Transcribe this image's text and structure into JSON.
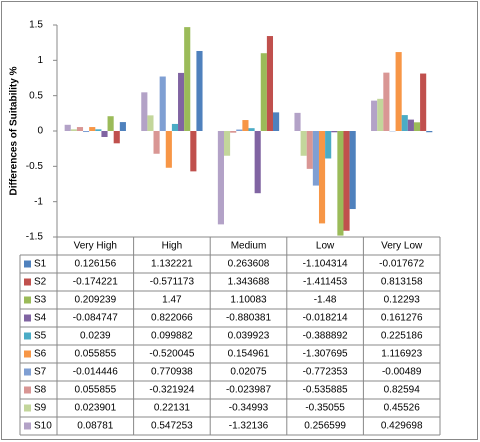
{
  "chart_data": {
    "type": "bar",
    "y_label": "Differences of Suitability %",
    "categories": [
      "Very High",
      "High",
      "Medium",
      "Low",
      "Very Low"
    ],
    "series": [
      {
        "name": "S1",
        "color": "#4f81bd",
        "values": [
          0.126156,
          1.132221,
          0.263608,
          -1.104314,
          -0.017672
        ]
      },
      {
        "name": "S2",
        "color": "#c0504d",
        "values": [
          -0.174221,
          -0.571173,
          1.343688,
          -1.411453,
          0.813158
        ]
      },
      {
        "name": "S3",
        "color": "#9bbb59",
        "values": [
          0.209239,
          1.47,
          1.10083,
          -1.48,
          0.12293
        ]
      },
      {
        "name": "S4",
        "color": "#8064a2",
        "values": [
          -0.084747,
          0.822066,
          -0.880381,
          -0.018214,
          0.161276
        ]
      },
      {
        "name": "S5",
        "color": "#4bacc6",
        "values": [
          0.0239,
          0.099882,
          0.039923,
          -0.388892,
          0.225186
        ]
      },
      {
        "name": "S6",
        "color": "#f79646",
        "values": [
          0.055855,
          -0.520045,
          0.154961,
          -1.307695,
          1.116923
        ]
      },
      {
        "name": "S7",
        "color": "#7f9fd3",
        "values": [
          -0.014446,
          0.770938,
          0.02075,
          -0.772353,
          -0.00489
        ]
      },
      {
        "name": "S8",
        "color": "#d99694",
        "values": [
          0.055855,
          -0.321924,
          -0.023987,
          -0.535885,
          0.82594
        ]
      },
      {
        "name": "S9",
        "color": "#c3d69b",
        "values": [
          0.023901,
          0.22131,
          -0.34993,
          -0.35055,
          0.45526
        ]
      },
      {
        "name": "S10",
        "color": "#b3a2c7",
        "values": [
          0.08781,
          0.547253,
          -1.32136,
          0.256599,
          0.429698
        ]
      }
    ],
    "ylim": [
      -1.5,
      1.5
    ],
    "yticks": [
      -1.5,
      -1,
      -0.5,
      0,
      0.5,
      1,
      1.5
    ],
    "grid": false,
    "bar_order": "reversed"
  }
}
